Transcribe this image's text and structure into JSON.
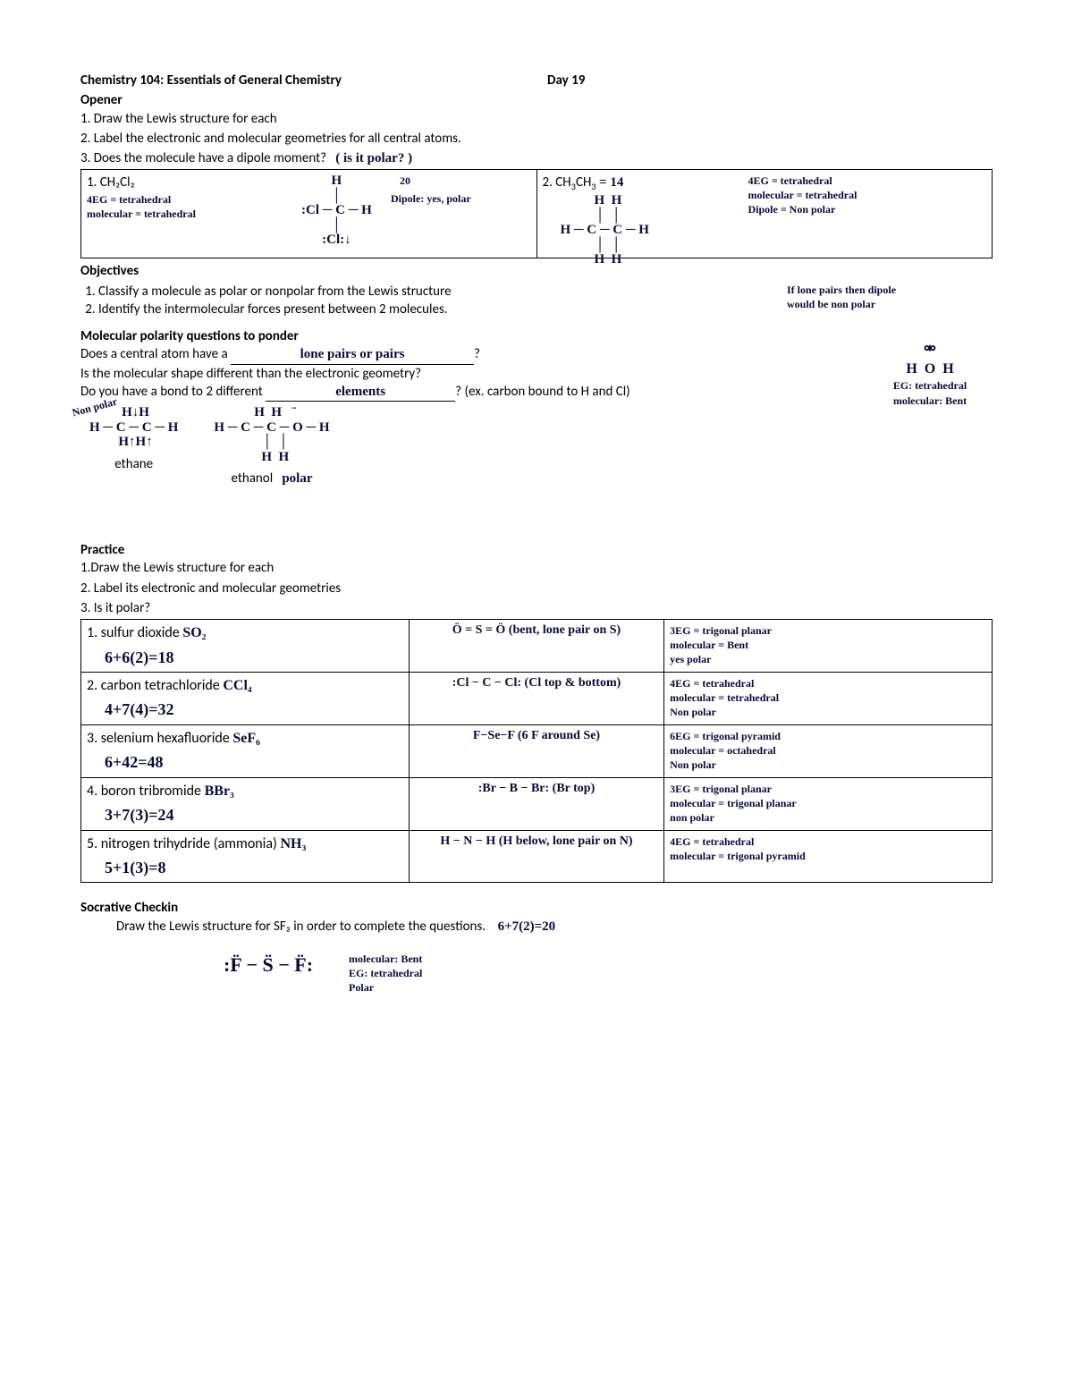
{
  "header": {
    "course": "Chemistry 104: Essentials of General Chemistry",
    "day": "Day 19"
  },
  "opener": {
    "title": "Opener",
    "items": [
      "1. Draw the Lewis structure for each",
      "2. Label the electronic and molecular geometries for all central atoms.",
      "3. Does the molecule have a dipole moment?"
    ],
    "hand_q3": "( is it polar? )"
  },
  "opener_table": {
    "cell1": {
      "label": "1.   CH₂Cl₂",
      "note1": "4EG = tetrahedral",
      "note2": "molecular = tetrahedral",
      "count": "20",
      "dipole": "Dipole: yes, polar",
      "structure": ":Cl − C − H   (H top, :Cl bottom, arrows)"
    },
    "cell2": {
      "label": "2. CH₃CH₃ = 14",
      "note1": "4EG = tetrahedral",
      "note2": "molecular = tetrahedral",
      "note3": "Dipole = Non polar",
      "structure": "H − C − C − H  (H above/below each C)"
    }
  },
  "objectives": {
    "title": "Objectives",
    "items": [
      "Classify a molecule as polar or nonpolar from the Lewis structure",
      "Identify the intermolecular forces present between 2 molecules."
    ],
    "side_note": "If lone pairs then dipole\nwould be non polar"
  },
  "ponder": {
    "title": "Molecular polarity questions to ponder",
    "q1_pre": "Does a central atom have a ",
    "q1_fill": "lone pairs or pairs",
    "q1_post": "?",
    "q2": "Is the molecular shape different than the electronic geometry?",
    "q3_pre": "Do you have a bond to 2 different ",
    "q3_fill": "elements",
    "q3_post": "? (ex. carbon bound to H and Cl)",
    "nonpolar_label": "Non polar",
    "ethane_label": "ethane",
    "ethanol_label": "ethanol",
    "ethanol_note": "polar",
    "ethanol_struct": "H−C−C−O−H (H around C's, lone pairs on O)",
    "ethane_struct": "H−C−C−H (H↑↓ arrows)",
    "water_side": {
      "struct": "H   O   H  (lone pairs on O)",
      "eg": "EG: tetrahedral",
      "mol": "molecular: Bent"
    }
  },
  "practice": {
    "title": "Practice",
    "items": [
      "1.Draw the Lewis structure for each",
      "2. Label its electronic and molecular geometries",
      "3. Is it polar?"
    ],
    "rows": [
      {
        "name": "1. sulfur dioxide",
        "formula": "SO₂",
        "calc": "6+6(2)=18",
        "struct": "Ö = S = Ö  (bent, lone pair on S)",
        "notes": "3EG = trigonal planar\nmolecular = Bent\nyes polar"
      },
      {
        "name": "2. carbon tetrachloride",
        "formula": "CCl₄",
        "calc": "4+7(4)=32",
        "struct": ":Cl − C − Cl:  (Cl top & bottom)",
        "notes": "4EG = tetrahedral\nmolecular = tetrahedral\nNon polar"
      },
      {
        "name": "3. selenium hexafluoride",
        "formula": "SeF₆",
        "calc": "6+42=48",
        "struct": "F−Se−F  (6 F around Se)",
        "notes": "6EG = trigonal pyramid\nmolecular = octahedral\nNon polar"
      },
      {
        "name": "4. boron tribromide",
        "formula": "BBr₃",
        "calc": "3+7(3)=24",
        "struct": ":Br − B − Br:  (Br top)",
        "notes": "3EG = trigonal planar\nmolecular = trigonal planar\nnon polar"
      },
      {
        "name": "5. nitrogen trihydride (ammonia)",
        "formula": "NH₃",
        "calc": "5+1(3)=8",
        "struct": "H − N − H  (H below, lone pair on N)",
        "notes": "4EG = tetrahedral\nmolecular = trigonal pyramid"
      }
    ]
  },
  "checkin": {
    "title": "Socrative Checkin",
    "text": "Draw the Lewis structure for SF₂ in order to complete the questions.",
    "calc": "6+7(2)=20",
    "struct": ":F̈ − S̈ − F̈:",
    "notes": "molecular: Bent\nEG: tetrahedral\nPolar"
  }
}
